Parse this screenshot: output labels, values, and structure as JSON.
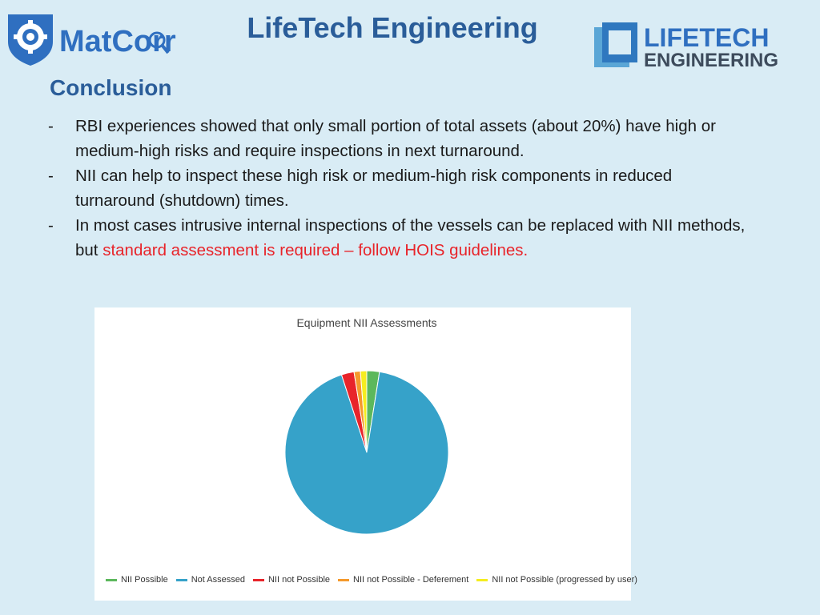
{
  "header": {
    "title": "LifeTech Engineering",
    "logo_left_text": "MatCorr",
    "logo_right_text_line1": "LIFETECH",
    "logo_right_text_line2": "ENGINEERING"
  },
  "section": {
    "title": "Conclusion",
    "bullets": [
      {
        "marker": "-",
        "text": "RBI experiences showed that only small portion of total assets (about 20%) have high or medium-high risks and require inspections in next turnaround.",
        "highlight": ""
      },
      {
        "marker": "-",
        "text": "NII can help to inspect these high risk or medium-high risk components in reduced turnaround (shutdown) times.",
        "highlight": ""
      },
      {
        "marker": "-",
        "text": "In most cases intrusive internal inspections of the vessels can be replaced with NII methods, but ",
        "highlight": "standard assessment is required – follow HOIS guidelines."
      }
    ]
  },
  "colors": {
    "title_blue": "#2a5d99",
    "highlight_red": "#e8242a",
    "background": "#d9ecf5"
  },
  "chart_data": {
    "type": "pie",
    "title": "Equipment NII Assessments",
    "legend_position": "bottom",
    "slices": [
      {
        "name": "NII Possible",
        "value": 2.5,
        "color": "#5cb85c"
      },
      {
        "name": "Not Assessed",
        "value": 92.5,
        "color": "#36a2c9"
      },
      {
        "name": "NII not Possible",
        "value": 2.5,
        "color": "#e8242a"
      },
      {
        "name": "NII not Possible - Deferement",
        "value": 1.25,
        "color": "#f5992c"
      },
      {
        "name": "NII not Possible (progressed by user)",
        "value": 1.25,
        "color": "#f5ed1f"
      }
    ]
  }
}
